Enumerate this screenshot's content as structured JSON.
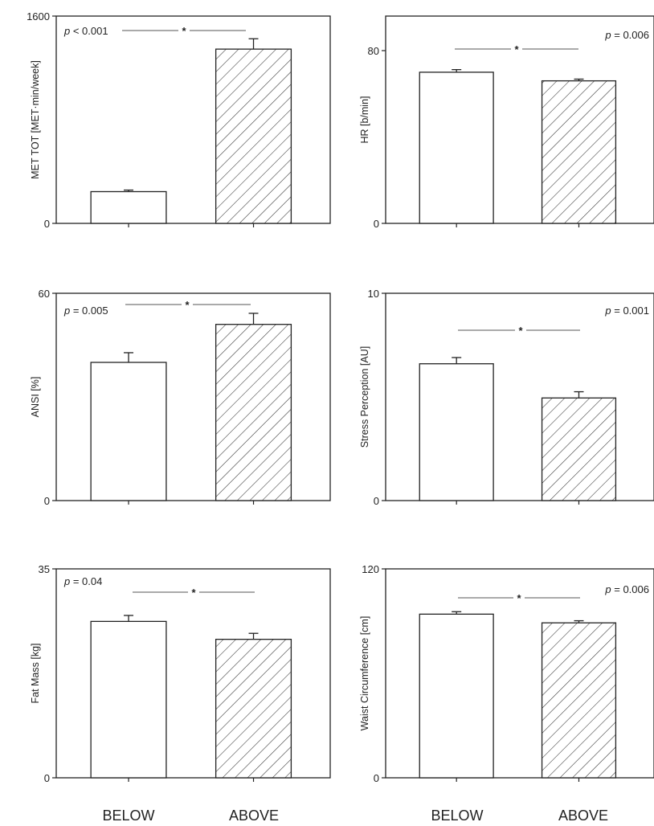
{
  "figure": {
    "categories": [
      "BELOW",
      "ABOVE"
    ],
    "colors": {
      "axis": "#222222",
      "bar_fill": "#ffffff",
      "hatch": "#333333",
      "bracket": "#777777"
    }
  },
  "chart_data": [
    {
      "type": "bar",
      "ylabel": "MET TOT  [MET·min/week]",
      "ylim": [
        0,
        1600
      ],
      "yticks": [
        "0",
        "1600"
      ],
      "categories": [
        "BELOW",
        "ABOVE"
      ],
      "values": [
        245,
        1345
      ],
      "errors": [
        12,
        80
      ],
      "p_label": "p < 0.001",
      "p_position": "top-left",
      "significance": "*"
    },
    {
      "type": "bar",
      "ylabel": "HR [b/min]",
      "ylim": [
        0,
        96
      ],
      "yticks": [
        "0",
        "80"
      ],
      "categories": [
        "BELOW",
        "ABOVE"
      ],
      "values": [
        70,
        66
      ],
      "errors": [
        1.2,
        0.8
      ],
      "p_label": "p = 0.006",
      "p_position": "top-right",
      "significance": "*"
    },
    {
      "type": "bar",
      "ylabel": "ANSI [%]",
      "ylim": [
        0,
        60
      ],
      "yticks": [
        "0",
        "60"
      ],
      "categories": [
        "BELOW",
        "ABOVE"
      ],
      "values": [
        40,
        51
      ],
      "errors": [
        2.8,
        3.2
      ],
      "p_label": "p = 0.005",
      "p_position": "top-left",
      "significance": "*"
    },
    {
      "type": "bar",
      "ylabel": "Stress Perception [AU]",
      "ylim": [
        0,
        10
      ],
      "yticks": [
        "0",
        "10"
      ],
      "categories": [
        "BELOW",
        "ABOVE"
      ],
      "values": [
        6.6,
        4.95
      ],
      "errors": [
        0.3,
        0.3
      ],
      "p_label": "p = 0.001",
      "p_position": "top-right",
      "significance": "*"
    },
    {
      "type": "bar",
      "ylabel": "Fat Mass [kg]",
      "ylim": [
        0,
        35
      ],
      "yticks": [
        "0",
        "35"
      ],
      "categories": [
        "BELOW",
        "ABOVE"
      ],
      "values": [
        26.2,
        23.2
      ],
      "errors": [
        1.0,
        1.0
      ],
      "p_label": "p = 0.04",
      "p_position": "top-left",
      "significance": "*"
    },
    {
      "type": "bar",
      "ylabel": "Waist Circumference [cm]",
      "ylim": [
        0,
        120
      ],
      "yticks": [
        "0",
        "120"
      ],
      "categories": [
        "BELOW",
        "ABOVE"
      ],
      "values": [
        94,
        89
      ],
      "errors": [
        1.4,
        1.2
      ],
      "p_label": "p = 0.006",
      "p_position": "top-right",
      "significance": "*"
    }
  ]
}
